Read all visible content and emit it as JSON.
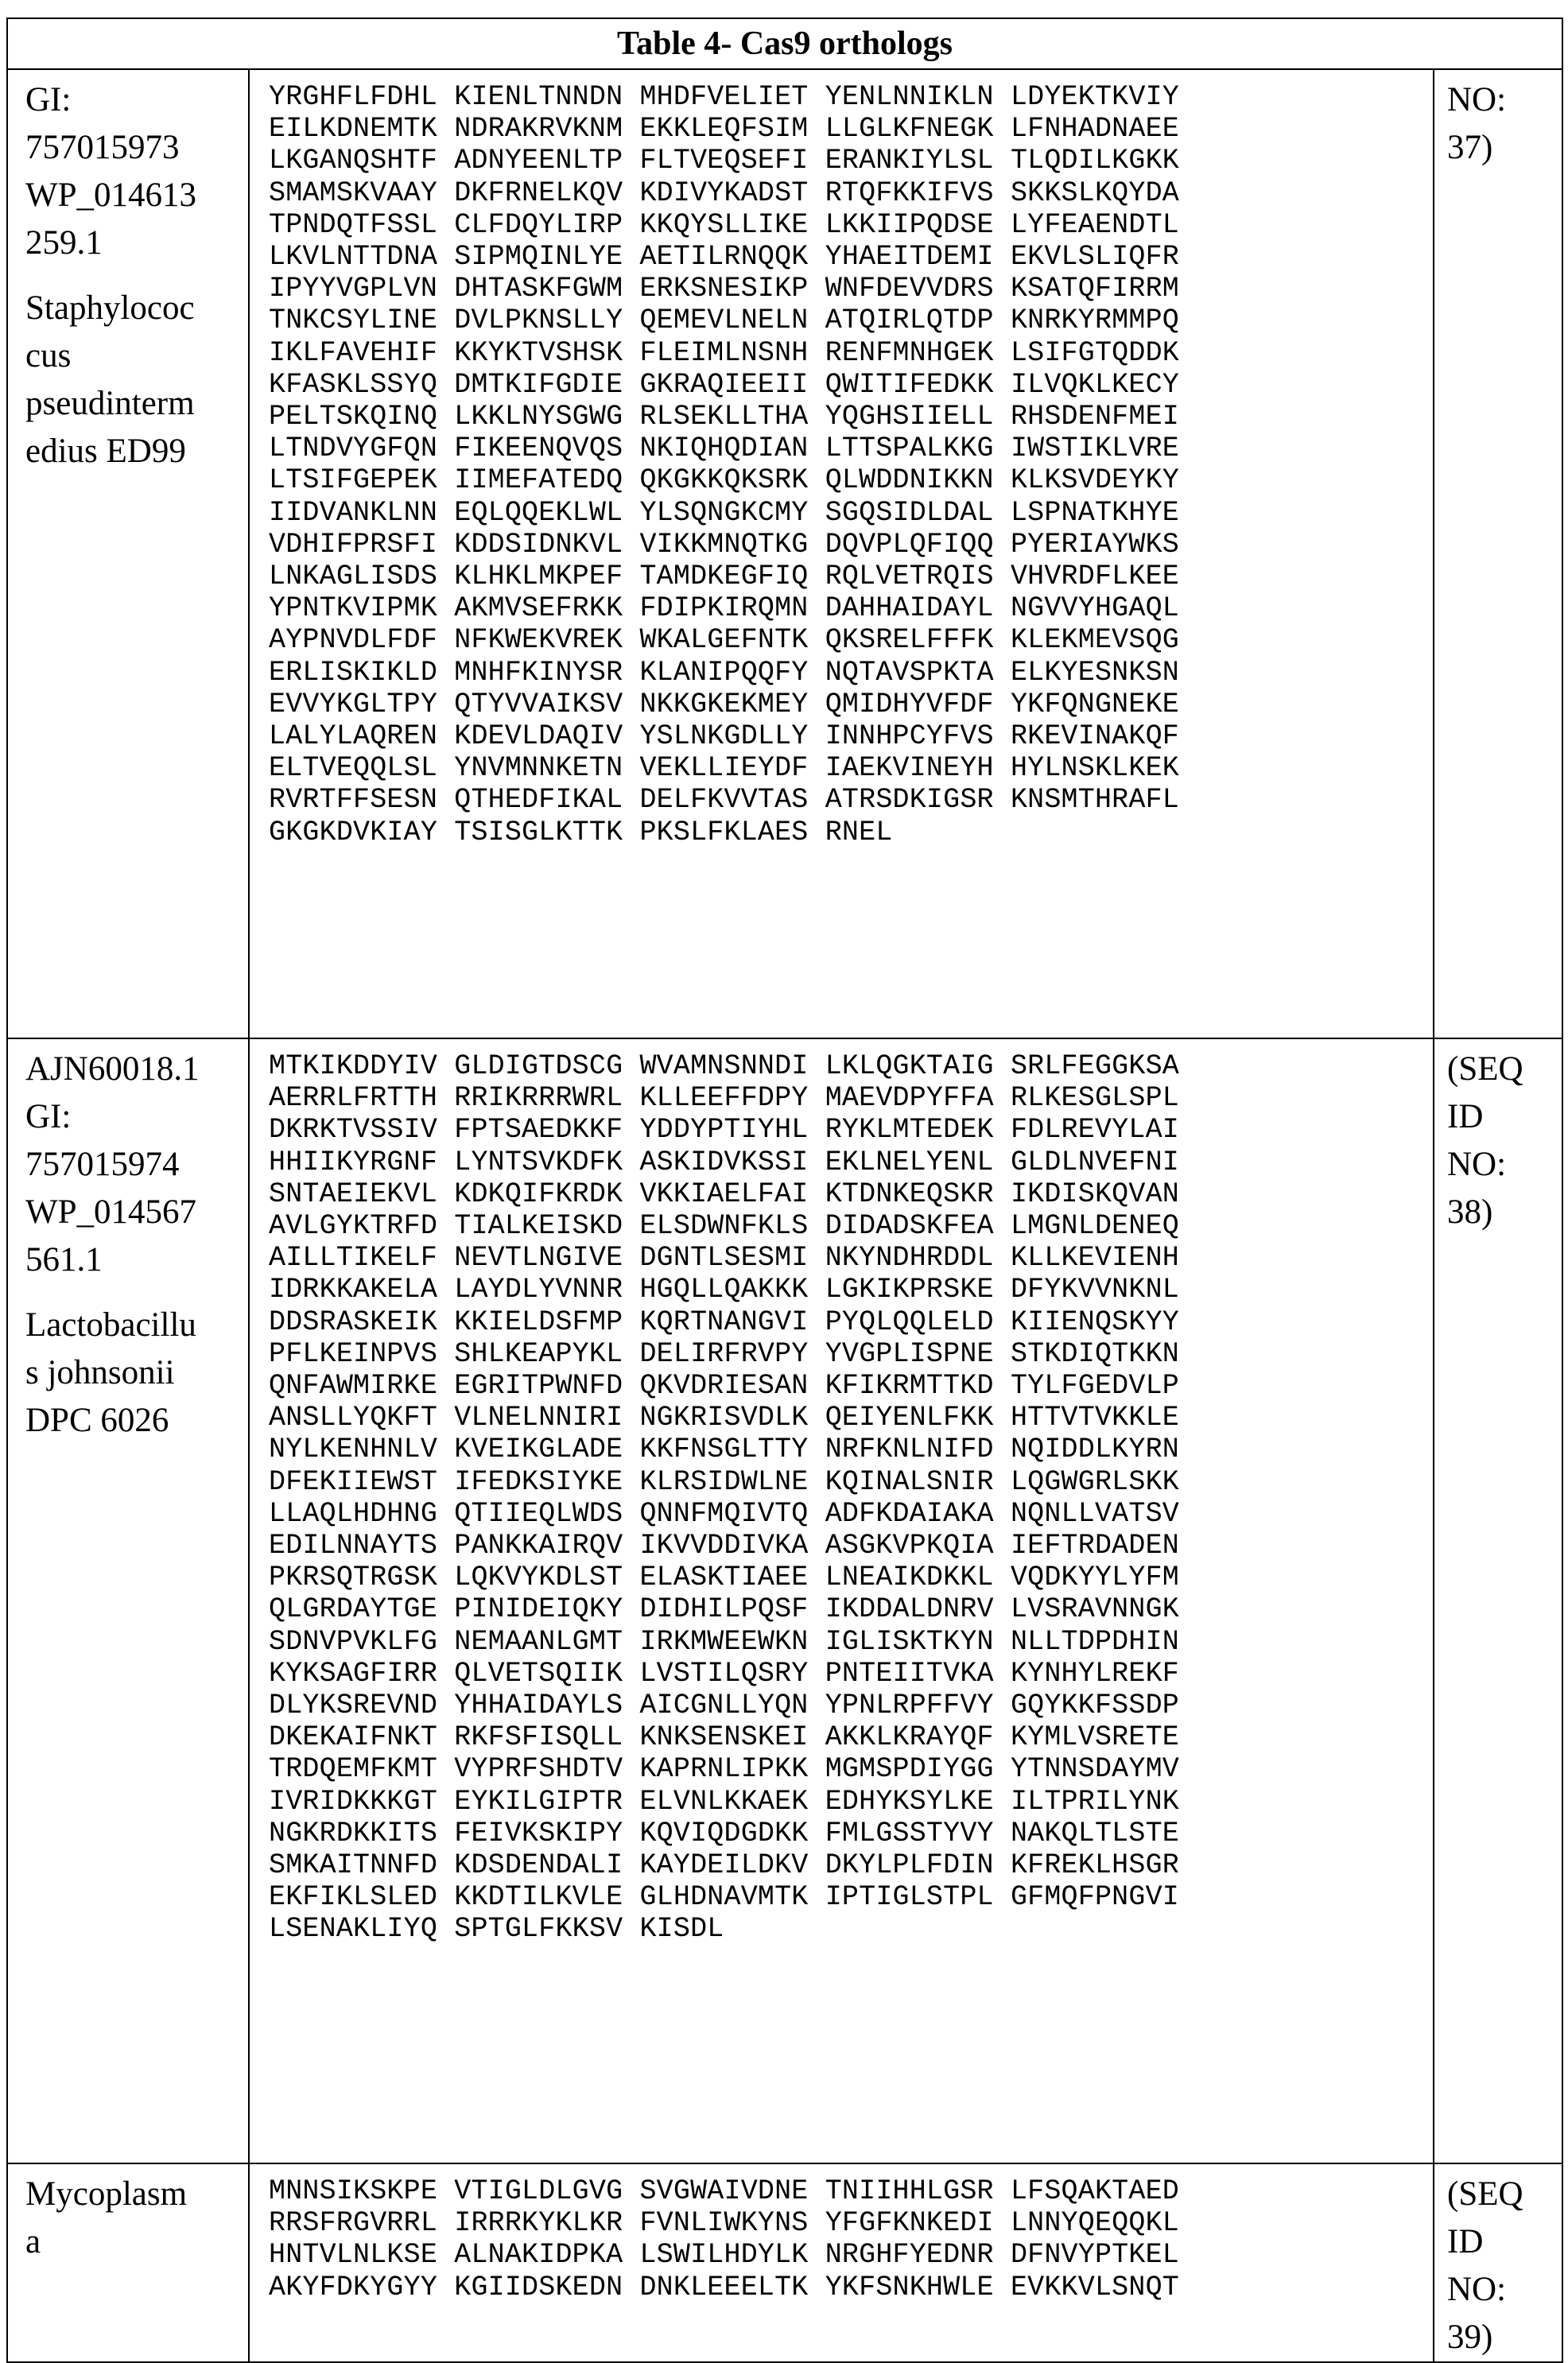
{
  "table": {
    "title": "Table 4- Cas9 orthologs",
    "rows": [
      {
        "id_lines": [
          "GI:",
          "757015973",
          "WP_014613",
          "259.1"
        ],
        "organism_lines": [
          "Staphylococ",
          "cus",
          "pseudinterm",
          "edius ED99"
        ],
        "seq_id_lines": [
          "NO:",
          "37)"
        ],
        "sequence": [
          "YRGHFLFDHL KIENLTNNDN MHDFVELIET YENLNNIKLN LDYEKTKVIY",
          "EILKDNEMTK NDRAKRVKNM EKKLEQFSIM LLGLKFNEGK LFNHADNAEE",
          "LKGANQSHTF ADNYEENLTP FLTVEQSEFI ERANKIYLSL TLQDILKGKK",
          "SMAMSKVAAY DKFRNELKQV KDIVYKADST RTQFKKIFVS SKKSLKQYDA",
          "TPNDQTFSSL CLFDQYLIRP KKQYSLLIKE LKKIIPQDSE LYFEAENDTL",
          "LKVLNTTDNA SIPMQINLYE AETILRNQQK YHAEITDEMI EKVLSLIQFR",
          "IPYYVGPLVN DHTASKFGWM ERKSNESIKP WNFDEVVDRS KSATQFIRRM",
          "TNKCSYLINE DVLPKNSLLY QEMEVLNELN ATQIRLQTDP KNRKYRMMPQ",
          "IKLFAVEHIF KKYKTVSHSK FLEIMLNSNH RENFMNHGEK LSIFGTQDDK",
          "KFASKLSSYQ DMTKIFGDIE GKRAQIEEII QWITIFEDKK ILVQKLKECY",
          "PELTSKQINQ LKKLNYSGWG RLSEKLLTHA YQGHSIIELL RHSDENFMEI",
          "LTNDVYGFQN FIKEENQVQS NKIQHQDIAN LTTSPALKKG IWSTIKLVRE",
          "LTSIFGEPEK IIMEFATEDQ QKGKKQKSRK QLWDDNIKKN KLKSVDEYKY",
          "IIDVANKLNN EQLQQEKLWL YLSQNGKCMY SGQSIDLDAL LSPNATKHYE",
          "VDHIFPRSFI KDDSIDNKVL VIKKMNQTKG DQVPLQFIQQ PYERIAYWKS",
          "LNKAGLISDS KLHKLMKPEF TAMDKEGFIQ RQLVETRQIS VHVRDFLKEE",
          "YPNTKVIPMK AKMVSEFRKK FDIPKIRQMN DAHHAIDAYL NGVVYHGAQL",
          "AYPNVDLFDF NFKWEKVREK WKALGEFNTK QKSRELFFFK KLEKMEVSQG",
          "ERLISKIKLD MNHFKINYSR KLANIPQQFY NQTAVSPKTA ELKYESNKSN",
          "EVVYKGLTPY QTYVVAIKSV NKKGKEKMEY QMIDHYVFDF YKFQNGNEKE",
          "LALYLAQREN KDEVLDAQIV YSLNKGDLLY INNHPCYFVS RKEVINAKQF",
          "ELTVEQQLSL YNVMNNKETN VEKLLIEYDF IAEKVINEYH HYLNSKLKEK",
          "RVRTFFSESN QTHEDFIKAL DELFKVVTAS ATRSDKIGSR KNSMTHRAFL",
          "GKGKDVKIAY TSISGLKTTK PKSLFKLAES RNEL"
        ]
      },
      {
        "id_lines": [
          "AJN60018.1",
          "GI:",
          "757015974",
          "WP_014567",
          "561.1"
        ],
        "organism_lines": [
          "Lactobacillu",
          "s johnsonii",
          "DPC 6026"
        ],
        "seq_id_lines": [
          "(SEQ",
          "ID",
          "NO:",
          "38)"
        ],
        "sequence": [
          "MTKIKDDYIV GLDIGTDSCG WVAMNSNNDI LKLQGKTAIG SRLFEGGKSA",
          "AERRLFRTTH RRIKRRRWRL KLLEEFFDPY MAEVDPYFFA RLKESGLSPL",
          "DKRKTVSSIV FPTSAEDKKF YDDYPTIYHL RYKLMTEDEK FDLREVYLAI",
          "HHIIKYRGNF LYNTSVKDFK ASKIDVKSSI EKLNELYENL GLDLNVEFNI",
          "SNTAEIEKVL KDKQIFKRDK VKKIAELFAI KTDNKEQSKR IKDISKQVAN",
          "AVLGYKTRFD TIALKEISKD ELSDWNFKLS DIDADSKFEA LMGNLDENEQ",
          "AILLTIKELF NEVTLNGIVE DGNTLSESMI NKYNDHRDDL KLLKEVIENH",
          "IDRKKAKELA LAYDLYVNNR HGQLLQAKKK LGKIKPRSKE DFYKVVNKNL",
          "DDSRASKEIK KKIELDSFMP KQRTNANGVI PYQLQQLELD KIIENQSKYY",
          "PFLKEINPVS SHLKEAPYKL DELIRFRVPY YVGPLISPNE STKDIQTKKN",
          "QNFAWMIRKE EGRITPWNFD QKVDRIESAN KFIKRMTTKD TYLFGEDVLP",
          "ANSLLYQKFT VLNELNNIRI NGKRISVDLK QEIYENLFKK HTTVTVKKLE",
          "NYLKENHNLV KVEIKGLADE KKFNSGLTTY NRFKNLNIFD NQIDDLKYRN",
          "DFEKIIEWST IFEDKSIYKE KLRSIDWLNE KQINALSNIR LQGWGRLSKK",
          "LLAQLHDHNG QTIIEQLWDS QNNFMQIVTQ ADFKDAIAKA NQNLLVATSV",
          "EDILNNAYTS PANKKAIRQV IKVVDDIVKA ASGKVPKQIA IEFTRDADEN",
          "PKRSQTRGSK LQKVYKDLST ELASKTIAEE LNEAIKDKKL VQDKYYLYFM",
          "QLGRDAYTGE PINIDEIQKY DIDHILPQSF IKDDALDNRV LVSRAVNNGK",
          "SDNVPVKLFG NEMAANLGMT IRKMWEEWKN IGLISKTKYN NLLTDPDHIN",
          "KYKSAGFIRR QLVETSQIIK LVSTILQSRY PNTEIITVKA KYNHYLREKF",
          "DLYKSREVND YHHAIDAYLS AICGNLLYQN YPNLRPFFVY GQYKKFSSDP",
          "DKEKAIFNKT RKFSFISQLL KNKSENSKEI AKKLKRAYQF KYMLVSRETE",
          "TRDQEMFKMT VYPRFSHDTV KAPRNLIPKK MGMSPDIYGG YTNNSDAYMV",
          "IVRIDKKKGT EYKILGIPTR ELVNLKKAEK EDHYKSYLKE ILTPRILYNK",
          "NGKRDKKITS FEIVKSKIPY KQVIQDGDKK FMLGSSTYVY NAKQLTLSTE",
          "SMKAITNNFD KDSDENDALI KAYDEILDKV DKYLPLFDIN KFREKLHSGR",
          "EKFIKLSLED KKDTILKVLE GLHDNAVMTK IPTIGLSTPL GFMQFPNGVI",
          "LSENAKLIYQ SPTGLFKKSV KISDL"
        ]
      },
      {
        "id_lines": [
          "Mycoplasm",
          "a"
        ],
        "organism_lines": [],
        "seq_id_lines": [
          "(SEQ",
          "ID",
          "NO:",
          "39)"
        ],
        "sequence": [
          "MNNSIKSKPE VTIGLDLGVG SVGWAIVDNE TNIIHHLGSR LFSQAKTAED",
          "RRSFRGVRRL IRRRKYKLKR FVNLIWKYNS YFGFKNKEDI LNNYQEQQKL",
          "HNTVLNLKSE ALNAKIDPKA LSWILHDYLK NRGHFYEDNR DFNVYPTKEL",
          "AKYFDKYGYY KGIIDSKEDN DNKLEEELTK YKFSNKHWLE EVKKVLSNQT"
        ]
      }
    ]
  }
}
